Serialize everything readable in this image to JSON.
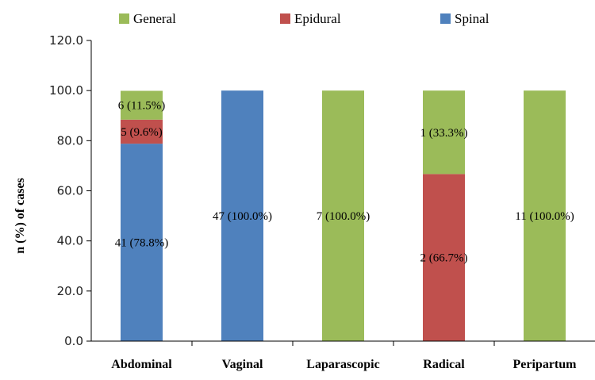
{
  "chart_data": {
    "type": "bar",
    "stacked": true,
    "title": "",
    "xlabel": "",
    "ylabel": "n (%) of cases",
    "ylim": [
      0,
      120
    ],
    "y_ticks": [
      "0.0",
      "20.0",
      "40.0",
      "60.0",
      "80.0",
      "100.0",
      "120.0"
    ],
    "grid": false,
    "legend_position": "top",
    "categories": [
      "Abdominal",
      "Vaginal",
      "Laparascopic",
      "Radical",
      "Peripartum"
    ],
    "series": [
      {
        "name": "Spinal",
        "color": "#4f81bd",
        "values": [
          78.8,
          100.0,
          0,
          0,
          0
        ],
        "labels": [
          "41 (78.8%)",
          "47 (100.0%)",
          "",
          "",
          ""
        ]
      },
      {
        "name": "Epidural",
        "color": "#c0504d",
        "values": [
          9.6,
          0,
          0,
          66.7,
          0
        ],
        "labels": [
          "5 (9.6%)",
          "",
          "",
          "2 (66.7%)",
          ""
        ]
      },
      {
        "name": "General",
        "color": "#9bbb59",
        "values": [
          11.5,
          0,
          100.0,
          33.3,
          100.0
        ],
        "labels": [
          "6 (11.5%)",
          "",
          "7 (100.0%)",
          "1 (33.3%)",
          "11 (100.0%)"
        ]
      }
    ],
    "legend_order": [
      "General",
      "Epidural",
      "Spinal"
    ]
  }
}
